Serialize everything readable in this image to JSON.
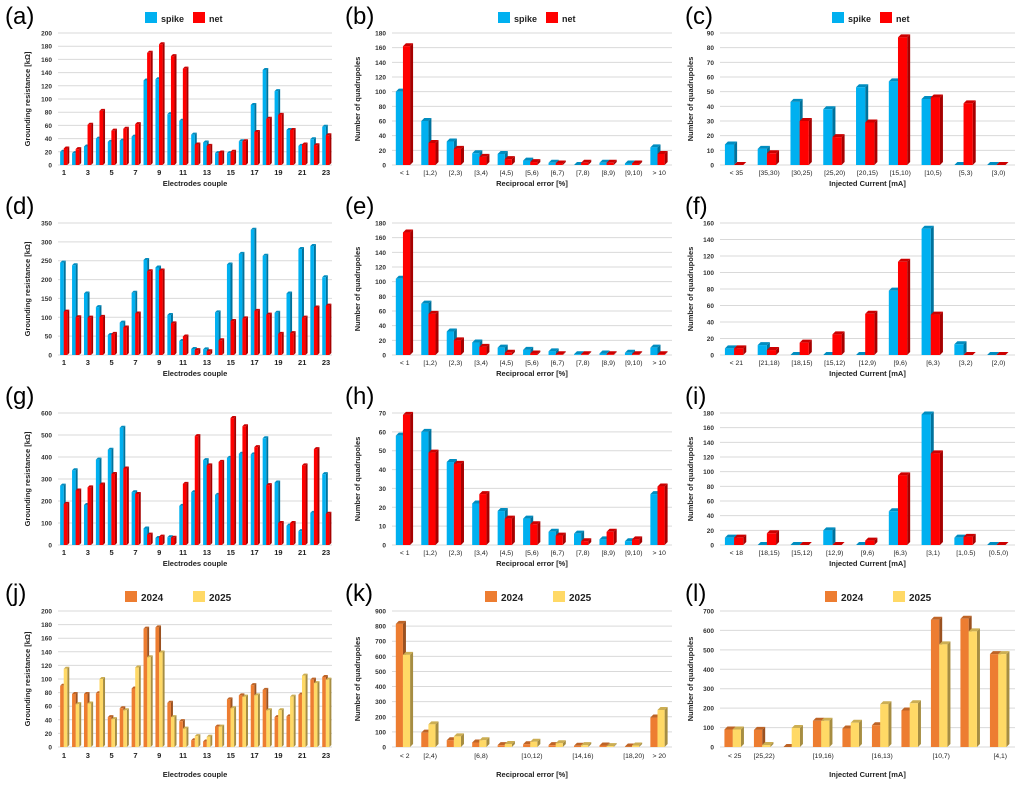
{
  "colors": {
    "spike": "#00b0f0",
    "net": "#ff0000",
    "y2024": "#ed7d31",
    "y2025": "#ffd966"
  },
  "chart_data": [
    {
      "panel": "(a)",
      "type": "bar",
      "xlabel": "Electrodes couple",
      "ylabel": "Grounding resistance [kΩ]",
      "ylim": [
        0,
        200
      ],
      "ystep": 20,
      "grid": true,
      "legend": "top",
      "categories": [
        "1",
        "",
        "3",
        "",
        "5",
        "",
        "7",
        "",
        "9",
        "",
        "11",
        "",
        "13",
        "",
        "15",
        "",
        "17",
        "",
        "19",
        "",
        "21",
        "",
        "23"
      ],
      "series": [
        {
          "name": "spike",
          "values": [
            20,
            18,
            28,
            40,
            35,
            37,
            43,
            128,
            130,
            77,
            67,
            46,
            34,
            18,
            18,
            36,
            91,
            144,
            112,
            53,
            29,
            39,
            58
          ]
        },
        {
          "name": "net",
          "values": [
            25,
            24,
            61,
            82,
            52,
            55,
            62,
            170,
            183,
            165,
            146,
            31,
            29,
            19,
            20,
            36,
            50,
            70,
            76,
            53,
            31,
            30,
            45
          ]
        }
      ]
    },
    {
      "panel": "(b)",
      "type": "bar",
      "xlabel": "Reciprocal error [%]",
      "ylabel": "Number of quadrupoles",
      "ylim": [
        0,
        180
      ],
      "ystep": 20,
      "grid": true,
      "legend": "top",
      "categories": [
        "< 1",
        "[1,2)",
        "[2,3)",
        "[3,4)",
        "[4,5)",
        "[5,6)",
        "[6,7)",
        "[7,8)",
        "[8,9)",
        "[9,10)",
        "> 10"
      ],
      "series": [
        {
          "name": "spike",
          "values": [
            100,
            60,
            32,
            16,
            15,
            6,
            3,
            0,
            3,
            2,
            24
          ]
        },
        {
          "name": "net",
          "values": [
            162,
            30,
            22,
            11,
            8,
            4,
            2,
            3,
            3,
            2,
            15
          ]
        }
      ]
    },
    {
      "panel": "(c)",
      "type": "bar",
      "xlabel": "Injected Current [mA]",
      "ylabel": "Number of quadrupoles",
      "ylim": [
        0,
        90
      ],
      "ystep": 10,
      "grid": true,
      "legend": "top",
      "categories": [
        "< 35",
        "[35,30)",
        "[30,25)",
        "[25,20)",
        "[20,15)",
        "[15,10)",
        "[10,5)",
        "[5,3)",
        "[3,0)"
      ],
      "series": [
        {
          "name": "spike",
          "values": [
            14,
            11,
            43,
            38,
            53,
            57,
            45,
            0,
            0
          ]
        },
        {
          "name": "net",
          "values": [
            0,
            8,
            30,
            19,
            29,
            87,
            46,
            42,
            0
          ]
        }
      ]
    },
    {
      "panel": "(d)",
      "type": "bar",
      "xlabel": "Electrodes couple",
      "ylabel": "Grounding resistance [kΩ]",
      "ylim": [
        0,
        350
      ],
      "ystep": 50,
      "grid": true,
      "legend": "none",
      "categories": [
        "1",
        "",
        "3",
        "",
        "5",
        "",
        "7",
        "",
        "9",
        "",
        "11",
        "",
        "13",
        "",
        "15",
        "",
        "17",
        "",
        "19",
        "",
        "21",
        "",
        "23"
      ],
      "series": [
        {
          "values": [
            245,
            238,
            163,
            127,
            53,
            86,
            165,
            252,
            232,
            106,
            37,
            16,
            15,
            113,
            240,
            268,
            332,
            263,
            112,
            163,
            281,
            289,
            206
          ]
        },
        {
          "values": [
            115,
            100,
            99,
            101,
            56,
            73,
            110,
            222,
            224,
            84,
            49,
            13,
            10,
            39,
            90,
            97,
            117,
            107,
            56,
            58,
            99,
            126,
            131
          ]
        }
      ]
    },
    {
      "panel": "(e)",
      "type": "bar",
      "xlabel": "Reciprocal error [%]",
      "ylabel": "Number of quadrupoles",
      "ylim": [
        0,
        180
      ],
      "ystep": 20,
      "grid": true,
      "legend": "none",
      "categories": [
        "< 1",
        "[1,2)",
        "[2,3)",
        "[3,4)",
        "[4,5)",
        "[5,6)",
        "[6,7)",
        "[7,8)",
        "[8,9)",
        "[9,10)",
        "> 10"
      ],
      "series": [
        {
          "values": [
            104,
            70,
            32,
            17,
            10,
            7,
            5,
            1,
            2,
            3,
            10
          ]
        },
        {
          "values": [
            167,
            56,
            20,
            11,
            3,
            2,
            1,
            1,
            1,
            1,
            1
          ]
        }
      ]
    },
    {
      "panel": "(f)",
      "type": "bar",
      "xlabel": "Injected Current [mA]",
      "ylabel": "Number of quadrupoles",
      "ylim": [
        0,
        160
      ],
      "ystep": 20,
      "grid": true,
      "legend": "none",
      "categories": [
        "< 21",
        "[21,18)",
        "[18,15)",
        "[15,12)",
        "[12,9)",
        "[9,6)",
        "[6,3)",
        "[3,2)",
        "[2,0)"
      ],
      "series": [
        {
          "values": [
            8,
            12,
            0,
            0,
            0,
            78,
            153,
            13,
            0
          ]
        },
        {
          "values": [
            8,
            6,
            15,
            25,
            50,
            113,
            49,
            0,
            0
          ]
        }
      ]
    },
    {
      "panel": "(g)",
      "type": "bar",
      "xlabel": "Electrodes couple",
      "ylabel": "Grounding resistance [kΩ]",
      "ylim": [
        0,
        600
      ],
      "ystep": 100,
      "grid": true,
      "legend": "none",
      "categories": [
        "1",
        "",
        "3",
        "",
        "5",
        "",
        "7",
        "",
        "9",
        "",
        "11",
        "",
        "13",
        "",
        "15",
        "",
        "17",
        "",
        "19",
        "",
        "21",
        "",
        "23"
      ],
      "series": [
        {
          "values": [
            270,
            340,
            182,
            388,
            433,
            533,
            240,
            75,
            32,
            35,
            178,
            240,
            386,
            228,
            396,
            415,
            412,
            485,
            284,
            88,
            63,
            146,
            322
          ]
        },
        {
          "values": [
            187,
            248,
            262,
            275,
            323,
            348,
            232,
            47,
            38,
            33,
            278,
            495,
            362,
            378,
            577,
            540,
            445,
            272,
            100,
            100,
            362,
            436,
            142
          ]
        }
      ]
    },
    {
      "panel": "(h)",
      "type": "bar",
      "xlabel": "Reciprocal error [%]",
      "ylabel": "Number of quadrupoles",
      "ylim": [
        0,
        70
      ],
      "ystep": 10,
      "grid": true,
      "legend": "none",
      "categories": [
        "< 1",
        "[1,2)",
        "[2,3)",
        "[3,4)",
        "[4,5)",
        "[5,6)",
        "[6,7)",
        "[7,8)",
        "[8,9)",
        "[9,10)",
        "> 10"
      ],
      "series": [
        {
          "values": [
            58,
            60,
            44,
            22,
            18,
            14,
            7,
            6,
            3,
            2,
            27
          ]
        },
        {
          "values": [
            69,
            49,
            43,
            27,
            14,
            11,
            5,
            2,
            7,
            3,
            31
          ]
        }
      ]
    },
    {
      "panel": "(i)",
      "type": "bar",
      "xlabel": "Injected Current [mA]",
      "ylabel": "Number of quadrupoles",
      "ylim": [
        0,
        180
      ],
      "ystep": 20,
      "grid": true,
      "legend": "none",
      "categories": [
        "< 18",
        "[18,15)",
        "[15,12)",
        "[12,9)",
        "[9,6)",
        "[6,3)",
        "[3,1)",
        "[1,0.5)",
        "[0.5,0)"
      ],
      "series": [
        {
          "values": [
            10,
            0,
            0,
            20,
            0,
            46,
            178,
            10,
            0
          ]
        },
        {
          "values": [
            10,
            16,
            0,
            0,
            6,
            95,
            125,
            11,
            0
          ]
        }
      ]
    },
    {
      "panel": "(j)",
      "type": "bar",
      "xlabel": "Electrodes couple",
      "ylabel": "Grounding resistance [kΩ]",
      "ylim": [
        0,
        200
      ],
      "ystep": 20,
      "grid": true,
      "legend": "top",
      "categories": [
        "1",
        "",
        "3",
        "",
        "5",
        "",
        "7",
        "",
        "9",
        "",
        "11",
        "",
        "13",
        "",
        "15",
        "",
        "17",
        "",
        "19",
        "",
        "21",
        "",
        "23"
      ],
      "series": [
        {
          "name": "2024",
          "values": [
            90,
            78,
            78,
            79,
            44,
            57,
            86,
            174,
            176,
            65,
            38,
            10,
            8,
            30,
            70,
            76,
            91,
            84,
            44,
            45,
            77,
            99,
            103
          ]
        },
        {
          "name": "2025",
          "values": [
            115,
            63,
            64,
            100,
            41,
            54,
            117,
            132,
            139,
            44,
            27,
            16,
            15,
            30,
            57,
            74,
            76,
            54,
            54,
            74,
            105,
            94,
            99
          ]
        }
      ]
    },
    {
      "panel": "(k)",
      "type": "bar",
      "xlabel": "Reciprocal error [%]",
      "ylabel": "Number of quadrupoles",
      "ylim": [
        0,
        900
      ],
      "ystep": 100,
      "grid": true,
      "legend": "top",
      "categories": [
        "< 2",
        "[2,4)",
        "",
        "[6,8)",
        "",
        "[10,12)",
        "",
        "[14,16)",
        "",
        "[18,20)",
        "> 20"
      ],
      "series": [
        {
          "name": "2024",
          "values": [
            815,
            95,
            45,
            30,
            12,
            18,
            12,
            8,
            10,
            3,
            195
          ]
        },
        {
          "name": "2025",
          "values": [
            610,
            150,
            70,
            45,
            20,
            35,
            25,
            12,
            6,
            10,
            245
          ]
        }
      ]
    },
    {
      "panel": "(l)",
      "type": "bar",
      "xlabel": "Injected Current [mA]",
      "ylabel": "Number of quadrupoles",
      "ylim": [
        0,
        700
      ],
      "ystep": 100,
      "grid": true,
      "legend": "top",
      "categories": [
        "< 25",
        "[25,22)",
        "",
        "[19,16)",
        "",
        "[16,13)",
        "",
        "[10,7)",
        "",
        "[4,1)"
      ],
      "series": [
        {
          "name": "2024",
          "values": [
            90,
            88,
            0,
            135,
            95,
            112,
            188,
            655,
            660,
            478
          ]
        },
        {
          "name": "2025",
          "values": [
            90,
            10,
            98,
            135,
            125,
            220,
            225,
            528,
            595,
            478
          ]
        }
      ]
    }
  ]
}
